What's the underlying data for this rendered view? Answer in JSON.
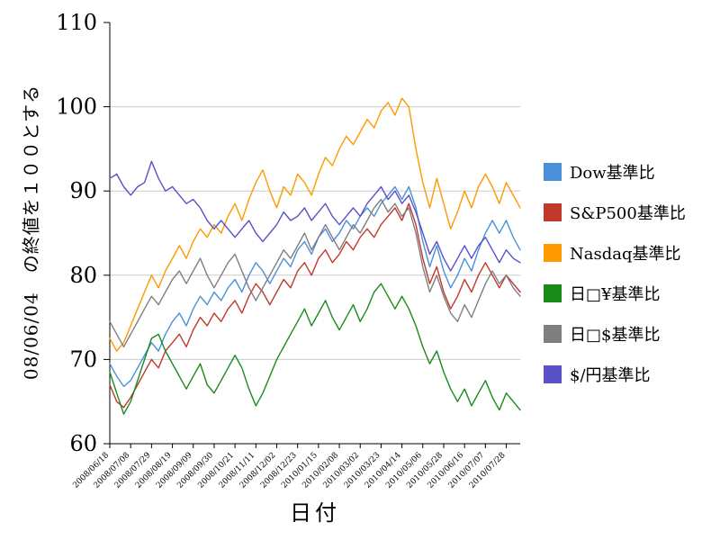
{
  "chart_data": {
    "type": "line",
    "title": "",
    "xlabel": "日付",
    "ylabel": "08/06/04　の終値を１００とする",
    "ylim": [
      60,
      110
    ],
    "yticks": [
      60,
      70,
      80,
      90,
      100,
      110
    ],
    "grid": true,
    "legend_position": "right",
    "grid_color": "#cccccc",
    "axis_color": "#000000",
    "tick_every": 3,
    "categories": [
      "2008/06/18",
      "2008/07/08",
      "2008/07/29",
      "2008/08/19",
      "2008/09/09",
      "2008/09/30",
      "2008/10/21",
      "2008/11/11",
      "2008/12/02",
      "2008/12/23",
      "2010/01/15",
      "2010/02/08",
      "2010/03/02",
      "2010/03/23",
      "2010/04/14",
      "2010/05/06",
      "2010/05/28",
      "2010/06/16",
      "2010/07/07",
      "2010/07/28"
    ],
    "series": [
      {
        "name": "Dow基準比",
        "color": "#4a90d9",
        "values": [
          69.5,
          68,
          66.8,
          67.5,
          69,
          70.5,
          72,
          71,
          73,
          74.5,
          75.5,
          74,
          76,
          77.5,
          76.5,
          78,
          77,
          78.5,
          79.5,
          78,
          80,
          81.5,
          80.5,
          79,
          80.5,
          82,
          81,
          83,
          84,
          82.5,
          84.5,
          85.5,
          84,
          85,
          86.5,
          85.5,
          87,
          88,
          87,
          88.5,
          89.5,
          90.5,
          89,
          90.5,
          88,
          84,
          81,
          83.5,
          80.5,
          78.5,
          80,
          82,
          80.5,
          83,
          85,
          86.5,
          85,
          86.5,
          84.5,
          83
        ]
      },
      {
        "name": "S&P500基準比",
        "color": "#c0392b",
        "values": [
          67,
          65,
          64.3,
          65.5,
          67,
          68.5,
          70,
          69,
          71,
          72,
          73,
          71.5,
          73.5,
          75,
          74,
          75.5,
          74.5,
          76,
          77,
          75.5,
          77.5,
          79,
          78,
          76.5,
          78,
          79.5,
          78.5,
          80.5,
          81.5,
          80,
          82,
          83,
          81.5,
          82.5,
          84,
          83,
          84.5,
          85.5,
          84.5,
          86,
          87,
          88,
          86.5,
          88.5,
          86,
          82,
          79,
          81,
          78,
          76,
          77.5,
          79.5,
          78,
          80,
          81.5,
          80,
          78.5,
          80,
          79,
          78
        ]
      },
      {
        "name": "Nasdaq基準比",
        "color": "#ff9900",
        "values": [
          72.5,
          71,
          72,
          74,
          76,
          78,
          80,
          78.5,
          80.5,
          82,
          83.5,
          82,
          84,
          85.5,
          84.5,
          86,
          85,
          87,
          88.5,
          86.5,
          89,
          91,
          92.5,
          90,
          88,
          90.5,
          89.5,
          92,
          91,
          89.5,
          92,
          94,
          93,
          95,
          96.5,
          95.5,
          97,
          98.5,
          97.5,
          99.5,
          100.5,
          99,
          101,
          100,
          95,
          91,
          88,
          91.5,
          88.5,
          85.5,
          87.5,
          90,
          88,
          90.5,
          92,
          90.5,
          88.5,
          91,
          89.5,
          88
        ]
      },
      {
        "name": "日□¥基準比",
        "color": "#1a8b1a",
        "values": [
          68.5,
          66,
          63.5,
          65,
          67.5,
          70,
          72.5,
          73,
          71,
          69.5,
          68,
          66.5,
          68,
          69.5,
          67,
          66,
          67.5,
          69,
          70.5,
          69,
          66.5,
          64.5,
          66,
          68,
          70,
          71.5,
          73,
          74.5,
          76,
          74,
          75.5,
          77,
          75,
          73.5,
          75,
          76.5,
          74.5,
          76,
          78,
          79,
          77.5,
          76,
          77.5,
          76,
          74,
          71.5,
          69.5,
          71,
          68.5,
          66.5,
          65,
          66.5,
          64.5,
          66,
          67.5,
          65.5,
          64,
          66,
          65,
          64
        ]
      },
      {
        "name": "日□$基準比",
        "color": "#7f7f7f",
        "values": [
          74.5,
          73,
          71.5,
          73,
          74.5,
          76,
          77.5,
          76.5,
          78,
          79.5,
          80.5,
          79,
          80.5,
          82,
          80,
          78.5,
          80,
          81.5,
          82.5,
          80.5,
          78.5,
          77,
          78.5,
          80,
          81.5,
          83,
          82,
          83.5,
          85,
          83,
          84.5,
          86,
          84.5,
          83,
          84.5,
          86,
          85,
          86.5,
          88,
          89,
          87.5,
          88.5,
          87,
          88,
          85,
          81,
          78,
          80,
          77.5,
          75.5,
          74.5,
          76.5,
          75,
          77,
          79,
          80.5,
          79,
          80,
          78.5,
          77.5
        ]
      },
      {
        "name": "$/円基準比",
        "color": "#5a50c8",
        "values": [
          91.5,
          92,
          90.5,
          89.5,
          90.5,
          91,
          93.5,
          91.5,
          90,
          90.5,
          89.5,
          88.5,
          89,
          88,
          86.5,
          85.5,
          86.5,
          85.5,
          84.5,
          85.5,
          86.5,
          85,
          84,
          85,
          86,
          87.5,
          86.5,
          87,
          88,
          86.5,
          87.5,
          88.5,
          87,
          86,
          87,
          88,
          87,
          88.5,
          89.5,
          90.5,
          89,
          90,
          88.5,
          89.5,
          87.5,
          85,
          82.5,
          84,
          82,
          80.5,
          82,
          83.5,
          82,
          83.5,
          84.5,
          83,
          81.5,
          83,
          82,
          81.5
        ]
      }
    ]
  }
}
